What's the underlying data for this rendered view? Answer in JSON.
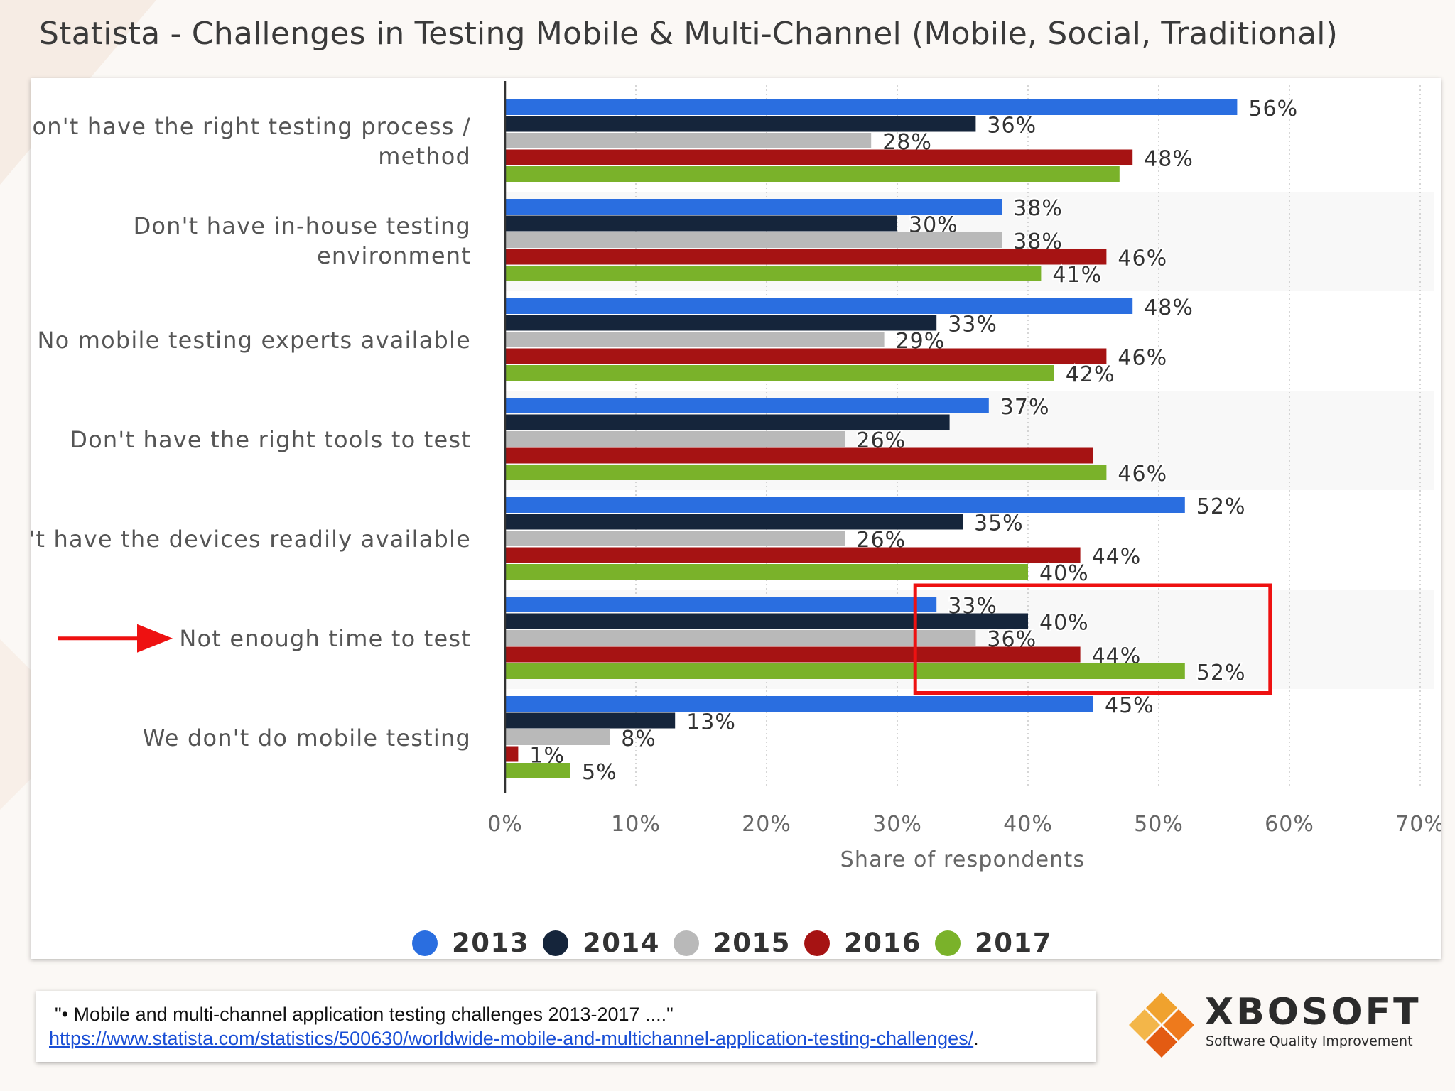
{
  "page": {
    "title": "Statista - Challenges in Testing Mobile & Multi-Channel (Mobile, Social, Traditional)"
  },
  "colors": {
    "2013": "#2a6ee0",
    "2014": "#15253b",
    "2015": "#b9b9b9",
    "2016": "#a61313",
    "2017": "#7ab22a",
    "highlight": "#ee1111",
    "arrow": "#ee1111"
  },
  "chart_data": {
    "type": "bar",
    "orientation": "horizontal",
    "title": "",
    "xlabel": "Share of respondents",
    "ylabel": "",
    "xlim": [
      0,
      70
    ],
    "x_ticks": [
      "0%",
      "10%",
      "20%",
      "30%",
      "40%",
      "50%",
      "60%",
      "70%"
    ],
    "grid": "vertical dotted",
    "legend_position": "bottom-center",
    "categories": [
      [
        "Don't have the right testing process /",
        "method"
      ],
      [
        "Don't have in-house testing",
        "environment"
      ],
      [
        "No mobile testing experts available"
      ],
      [
        "Don't have the right tools to test"
      ],
      [
        "Don't have the devices readily available"
      ],
      [
        "Not enough time to test"
      ],
      [
        "We don't do mobile testing"
      ]
    ],
    "series": [
      {
        "name": "2013",
        "values": [
          56,
          38,
          48,
          37,
          52,
          33,
          45
        ],
        "labels": [
          "56%",
          "38%",
          "48%",
          "37%",
          "52%",
          "33%",
          "45%"
        ]
      },
      {
        "name": "2014",
        "values": [
          36,
          30,
          33,
          34,
          35,
          40,
          13
        ],
        "labels": [
          "36%",
          "30%",
          "33%",
          null,
          "35%",
          "40%",
          "13%"
        ]
      },
      {
        "name": "2015",
        "values": [
          28,
          38,
          29,
          26,
          26,
          36,
          8
        ],
        "labels": [
          "28%",
          "38%",
          "29%",
          "26%",
          "26%",
          "36%",
          "8%"
        ]
      },
      {
        "name": "2016",
        "values": [
          48,
          46,
          46,
          45,
          44,
          44,
          1
        ],
        "labels": [
          "48%",
          "46%",
          "46%",
          null,
          "44%",
          "44%",
          "1%"
        ]
      },
      {
        "name": "2017",
        "values": [
          47,
          41,
          42,
          46,
          40,
          52,
          5
        ],
        "labels": [
          null,
          "41%",
          "42%",
          "46%",
          "40%",
          "52%",
          "5%"
        ]
      }
    ],
    "annotations": {
      "highlighted_category": "Not enough time to test",
      "arrow_points_to": "Not enough time to test"
    }
  },
  "source": {
    "quote": "\"• Mobile and multi-channel application testing challenges 2013-2017 ....\"",
    "link": "https://www.statista.com/statistics/500630/worldwide-mobile-and-multichannel-application-testing-challenges/",
    "trailing": "."
  },
  "brand": {
    "name": "XBOSOFT",
    "tagline": "Software Quality Improvement"
  }
}
